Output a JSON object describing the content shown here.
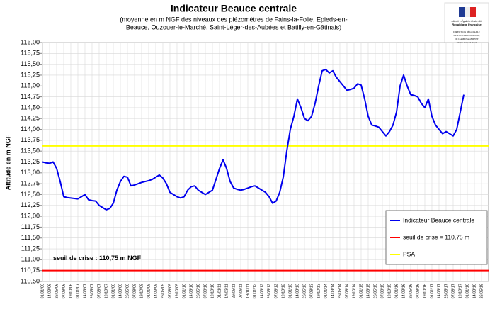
{
  "chart_data": {
    "type": "line",
    "title": "Indicateur Beauce centrale",
    "subtitle": [
      "(moyenne en m NGF des niveaux des piézomètres de Fains-la-Folie, Epieds-en-",
      "Beauce, Ouzouer-le-Marché, Saint-Léger-des-Aubées et Batilly-en-Gâtinais)"
    ],
    "y_label": "Altitude en m NGF",
    "logo": [
      "Liberté • Égalité • Fraternité",
      "République Française",
      "DIRECTION RÉGIONALE",
      "DE L'ENVIRONNEMENT,",
      "DE L'AMÉNAGEMENT",
      "ET DU LOGEMENT",
      "CENTRE VAL DE LOIRE"
    ],
    "annotation": "seuil de crise : 110,75 m NGF",
    "ylim": [
      110.5,
      116
    ],
    "yticks": [
      {
        "value": 110.5,
        "label": "110,50"
      },
      {
        "value": 110.75,
        "label": "110,75"
      },
      {
        "value": 111,
        "label": "111,00"
      },
      {
        "value": 111.25,
        "label": "111,25"
      },
      {
        "value": 111.5,
        "label": "111,50"
      },
      {
        "value": 111.75,
        "label": "111,75"
      },
      {
        "value": 112,
        "label": "112,00"
      },
      {
        "value": 112.25,
        "label": "112,25"
      },
      {
        "value": 112.5,
        "label": "112,50"
      },
      {
        "value": 112.75,
        "label": "112,75"
      },
      {
        "value": 113,
        "label": "113,00"
      },
      {
        "value": 113.25,
        "label": "113,25"
      },
      {
        "value": 113.5,
        "label": "113,50"
      },
      {
        "value": 113.75,
        "label": "113,75"
      },
      {
        "value": 114,
        "label": "114,00"
      },
      {
        "value": 114.25,
        "label": "114,25"
      },
      {
        "value": 114.5,
        "label": "114,50"
      },
      {
        "value": 114.75,
        "label": "114,75"
      },
      {
        "value": 115,
        "label": "115,00"
      },
      {
        "value": 115.25,
        "label": "115,25"
      },
      {
        "value": 115.5,
        "label": "115,50"
      },
      {
        "value": 115.75,
        "label": "115,75"
      },
      {
        "value": 116,
        "label": "116,00"
      }
    ],
    "grid": true,
    "categories": [
      "01/01/06",
      null,
      "14/03/06",
      null,
      "26/05/06",
      null,
      "07/08/06",
      null,
      "19/10/06",
      null,
      "01/01/07",
      null,
      "14/03/07",
      null,
      "26/05/07",
      null,
      "07/08/07",
      null,
      "19/10/07",
      null,
      "01/01/08",
      null,
      "14/03/08",
      null,
      "26/05/08",
      null,
      "07/08/08",
      null,
      "19/10/08",
      null,
      "01/01/09",
      null,
      "14/03/09",
      null,
      "26/05/09",
      null,
      "07/08/09",
      null,
      "19/10/09",
      null,
      "01/01/10",
      null,
      "14/03/10",
      null,
      "26/05/10",
      null,
      "07/08/10",
      null,
      "19/10/10",
      null,
      "01/01/11",
      null,
      "14/03/11",
      null,
      "26/05/11",
      null,
      "07/08/11",
      null,
      "19/10/11",
      null,
      "01/01/12",
      null,
      "14/03/12",
      null,
      "26/05/12",
      null,
      "07/08/12",
      null,
      "19/10/12",
      null,
      "01/01/13",
      null,
      "14/03/13",
      null,
      "26/05/13",
      null,
      "07/08/13",
      null,
      "19/10/13",
      null,
      "01/01/14",
      null,
      "14/03/14",
      null,
      "26/05/14",
      null,
      "07/08/14",
      null,
      "19/10/14",
      null,
      "01/01/15",
      null,
      "14/03/15",
      null,
      "26/05/15",
      null,
      "07/08/15",
      null,
      "19/10/15",
      null,
      "01/01/16",
      null,
      "14/03/16",
      null,
      "26/05/16",
      null,
      "07/08/16",
      null,
      "19/10/16",
      null,
      "01/01/17",
      null,
      "14/03/17",
      null,
      "26/05/17",
      null,
      "07/08/17",
      null,
      "19/10/17",
      null,
      "01/01/18",
      null,
      "14/03/18",
      null,
      "26/05/18",
      null
    ],
    "series": [
      {
        "name": "Indicateur Beauce centrale",
        "color": "#0000ee",
        "values": [
          113.25,
          113.23,
          113.22,
          113.25,
          113.1,
          112.8,
          112.45,
          112.43,
          112.42,
          112.41,
          112.4,
          112.45,
          112.5,
          112.38,
          112.36,
          112.35,
          112.25,
          112.2,
          112.15,
          112.18,
          112.3,
          112.6,
          112.8,
          112.92,
          112.9,
          112.7,
          112.72,
          112.75,
          112.78,
          112.8,
          112.82,
          112.85,
          112.9,
          112.95,
          112.88,
          112.75,
          112.55,
          112.5,
          112.45,
          112.42,
          112.45,
          112.6,
          112.68,
          112.7,
          112.6,
          112.55,
          112.5,
          112.55,
          112.6,
          112.85,
          113.1,
          113.3,
          113.1,
          112.8,
          112.65,
          112.62,
          112.6,
          112.62,
          112.65,
          112.68,
          112.7,
          112.65,
          112.6,
          112.55,
          112.45,
          112.3,
          112.35,
          112.55,
          112.9,
          113.5,
          114.0,
          114.3,
          114.7,
          114.5,
          114.25,
          114.2,
          114.3,
          114.6,
          115.0,
          115.35,
          115.38,
          115.3,
          115.35,
          115.2,
          115.1,
          115.0,
          114.9,
          114.92,
          114.95,
          115.05,
          115.02,
          114.7,
          114.3,
          114.1,
          114.08,
          114.05,
          113.95,
          113.85,
          113.95,
          114.1,
          114.4,
          115.0,
          115.25,
          115.0,
          114.8,
          114.78,
          114.75,
          114.6,
          114.5,
          114.7,
          114.3,
          114.1,
          114.0,
          113.9,
          113.95,
          113.9,
          113.85,
          114.0,
          114.4,
          114.8,
          null,
          null,
          null,
          null,
          null,
          null
        ]
      }
    ],
    "reference_lines": [
      {
        "name": "seuil de crise = 110,75 m",
        "value": 110.75,
        "color": "#ff0000"
      },
      {
        "name": "PSA",
        "value": 113.62,
        "color": "#ffff00"
      }
    ],
    "legend": "bottom-right"
  }
}
